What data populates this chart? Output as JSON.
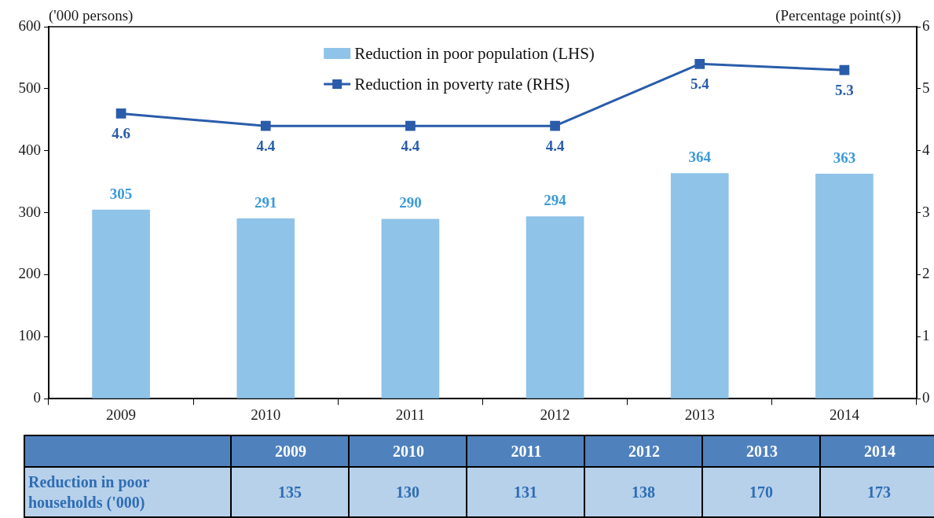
{
  "chart_data": [
    {
      "type": "bar",
      "ylabel": "('000 persons)",
      "y2label": "(Percentage point(s))",
      "categories": [
        "2009",
        "2010",
        "2011",
        "2012",
        "2013",
        "2014"
      ],
      "series": [
        {
          "name": "Reduction in poor population (LHS)",
          "color": "#8fc3e8",
          "values": [
            305,
            291,
            290,
            294,
            364,
            363
          ]
        },
        {
          "name": "Reduction in poverty rate (RHS)",
          "type": "line",
          "axis": "y2",
          "color": "#2a5caa",
          "values": [
            4.6,
            4.4,
            4.4,
            4.4,
            5.4,
            5.3
          ]
        }
      ],
      "ylim": [
        0,
        600
      ],
      "yticks": [
        0,
        100,
        200,
        300,
        400,
        500,
        600
      ],
      "y2lim": [
        0,
        6
      ],
      "y2ticks": [
        0,
        1,
        2,
        3,
        4,
        5,
        6
      ],
      "grid": false,
      "legend": "top",
      "marker": "square",
      "line_style": "solid",
      "data_labels": true
    },
    {
      "type": "heatmap",
      "categories": [
        "2009",
        "2010",
        "2011",
        "2012",
        "2013",
        "2014"
      ],
      "y_categories": [
        "Reduction in poor households ('000)"
      ],
      "cells": [
        [
          135,
          130,
          131,
          138,
          170,
          173
        ]
      ],
      "data_labels": true
    }
  ]
}
